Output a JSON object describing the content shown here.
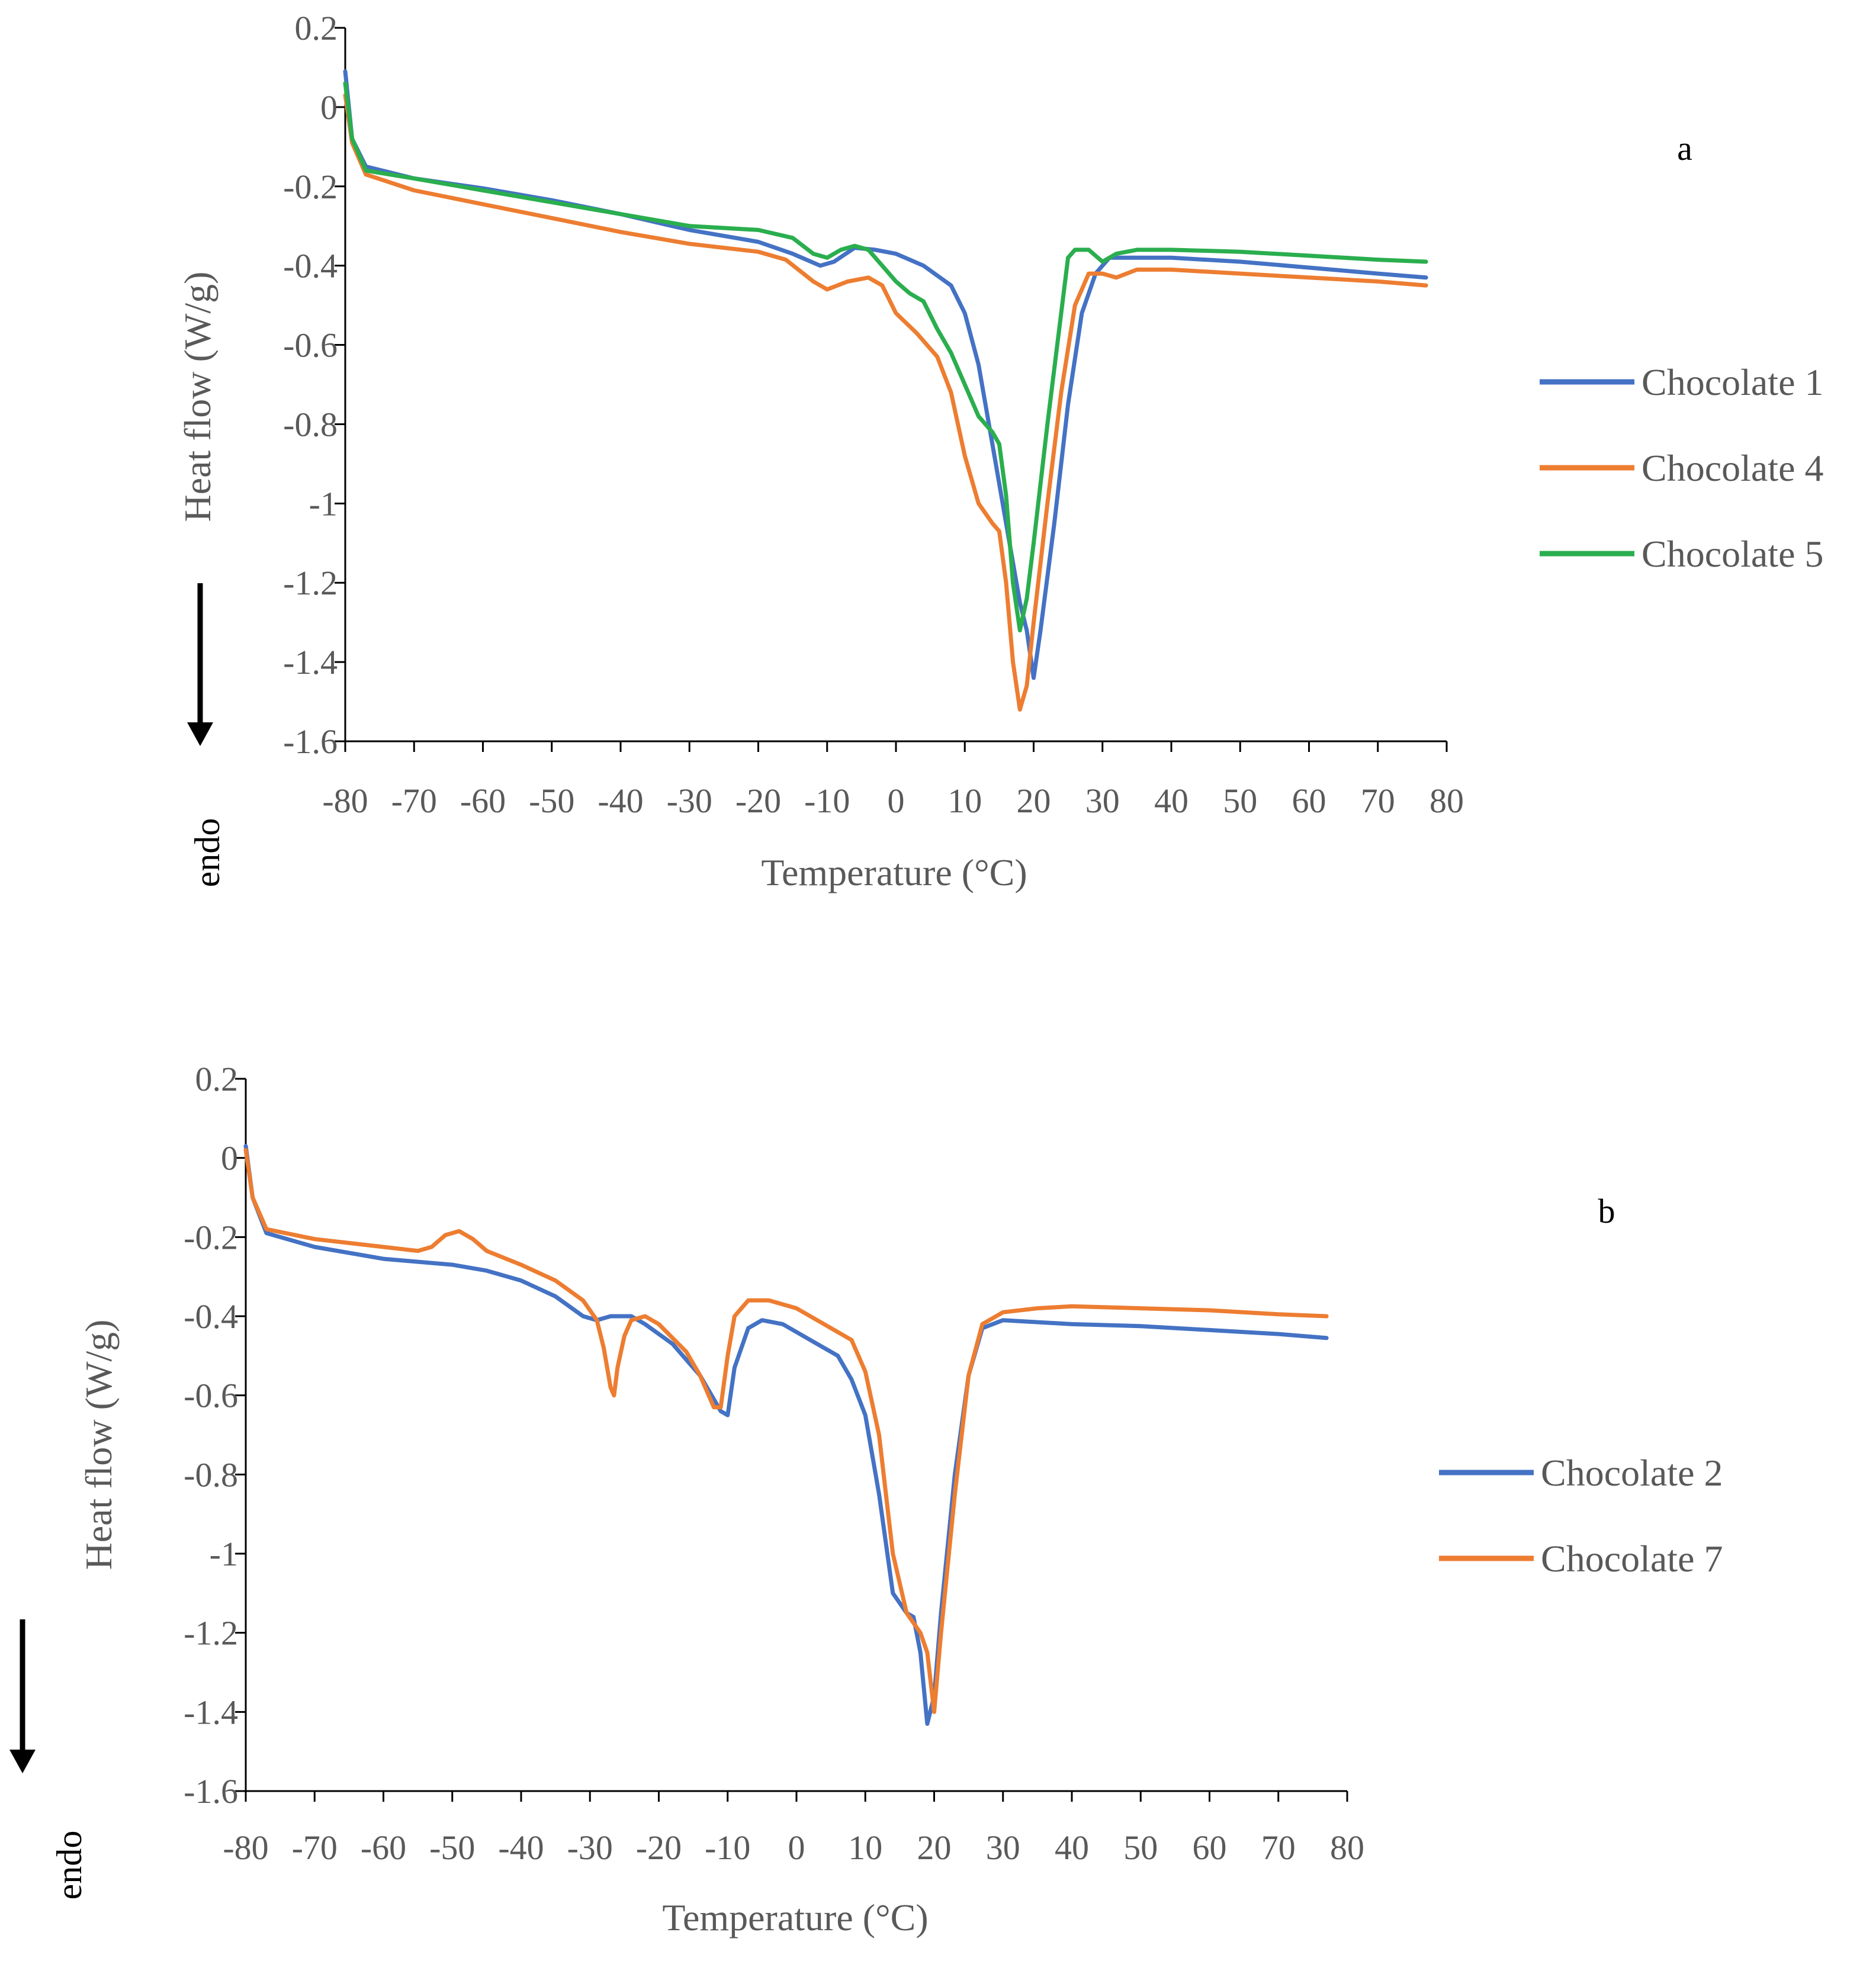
{
  "chart_data": [
    {
      "type": "line",
      "panel_label": "a",
      "xlabel": "Temperature (°C)",
      "ylabel": "Heat flow (W/g)",
      "direction_label": "endo",
      "xlim": [
        -80,
        80
      ],
      "ylim": [
        -1.6,
        0.2
      ],
      "x_ticks": [
        "-80",
        "-70",
        "-60",
        "-50",
        "-40",
        "-30",
        "-20",
        "-10",
        "0",
        "10",
        "20",
        "30",
        "40",
        "50",
        "60",
        "70",
        "80"
      ],
      "y_ticks": [
        "0.2",
        "0",
        "-0.2",
        "-0.4",
        "-0.6",
        "-0.8",
        "-1",
        "-1.2",
        "-1.4",
        "-1.6"
      ],
      "legend_position": "right",
      "series": [
        {
          "name": "Chocolate 1",
          "color": "#4472C4",
          "points": [
            [
              -80,
              0.09
            ],
            [
              -79,
              -0.08
            ],
            [
              -77,
              -0.15
            ],
            [
              -70,
              -0.18
            ],
            [
              -60,
              -0.205
            ],
            [
              -50,
              -0.235
            ],
            [
              -40,
              -0.27
            ],
            [
              -30,
              -0.31
            ],
            [
              -20,
              -0.34
            ],
            [
              -15,
              -0.37
            ],
            [
              -11,
              -0.4
            ],
            [
              -9,
              -0.39
            ],
            [
              -6,
              -0.355
            ],
            [
              -3,
              -0.36
            ],
            [
              0,
              -0.37
            ],
            [
              4,
              -0.4
            ],
            [
              8,
              -0.45
            ],
            [
              10,
              -0.52
            ],
            [
              12,
              -0.65
            ],
            [
              14,
              -0.85
            ],
            [
              16,
              -1.05
            ],
            [
              18,
              -1.25
            ],
            [
              19,
              -1.32
            ],
            [
              20,
              -1.44
            ],
            [
              21,
              -1.32
            ],
            [
              23,
              -1.05
            ],
            [
              25,
              -0.75
            ],
            [
              27,
              -0.52
            ],
            [
              29,
              -0.42
            ],
            [
              31,
              -0.38
            ],
            [
              40,
              -0.38
            ],
            [
              50,
              -0.39
            ],
            [
              60,
              -0.405
            ],
            [
              70,
              -0.42
            ],
            [
              77,
              -0.43
            ]
          ]
        },
        {
          "name": "Chocolate 4",
          "color": "#ED7D31",
          "points": [
            [
              -80,
              0.03
            ],
            [
              -79,
              -0.09
            ],
            [
              -77,
              -0.17
            ],
            [
              -70,
              -0.21
            ],
            [
              -60,
              -0.245
            ],
            [
              -50,
              -0.28
            ],
            [
              -40,
              -0.315
            ],
            [
              -30,
              -0.345
            ],
            [
              -20,
              -0.365
            ],
            [
              -16,
              -0.385
            ],
            [
              -12,
              -0.44
            ],
            [
              -10,
              -0.46
            ],
            [
              -7,
              -0.44
            ],
            [
              -4,
              -0.43
            ],
            [
              -2,
              -0.45
            ],
            [
              0,
              -0.52
            ],
            [
              3,
              -0.57
            ],
            [
              6,
              -0.63
            ],
            [
              8,
              -0.72
            ],
            [
              10,
              -0.88
            ],
            [
              12,
              -1.0
            ],
            [
              14,
              -1.05
            ],
            [
              15,
              -1.07
            ],
            [
              16,
              -1.2
            ],
            [
              17,
              -1.4
            ],
            [
              18,
              -1.52
            ],
            [
              19,
              -1.46
            ],
            [
              20,
              -1.3
            ],
            [
              22,
              -1.0
            ],
            [
              24,
              -0.72
            ],
            [
              26,
              -0.5
            ],
            [
              28,
              -0.42
            ],
            [
              30,
              -0.42
            ],
            [
              32,
              -0.43
            ],
            [
              35,
              -0.41
            ],
            [
              40,
              -0.41
            ],
            [
              50,
              -0.42
            ],
            [
              60,
              -0.43
            ],
            [
              70,
              -0.44
            ],
            [
              77,
              -0.45
            ]
          ]
        },
        {
          "name": "Chocolate 5",
          "color": "#2AAE4E",
          "points": [
            [
              -80,
              0.06
            ],
            [
              -79,
              -0.08
            ],
            [
              -77,
              -0.16
            ],
            [
              -70,
              -0.18
            ],
            [
              -60,
              -0.21
            ],
            [
              -50,
              -0.24
            ],
            [
              -40,
              -0.27
            ],
            [
              -30,
              -0.3
            ],
            [
              -20,
              -0.31
            ],
            [
              -15,
              -0.33
            ],
            [
              -12,
              -0.37
            ],
            [
              -10,
              -0.38
            ],
            [
              -8,
              -0.36
            ],
            [
              -6,
              -0.35
            ],
            [
              -4,
              -0.36
            ],
            [
              -2,
              -0.4
            ],
            [
              0,
              -0.44
            ],
            [
              2,
              -0.47
            ],
            [
              4,
              -0.49
            ],
            [
              6,
              -0.56
            ],
            [
              8,
              -0.62
            ],
            [
              10,
              -0.7
            ],
            [
              12,
              -0.78
            ],
            [
              14,
              -0.82
            ],
            [
              15,
              -0.85
            ],
            [
              16,
              -0.98
            ],
            [
              17,
              -1.2
            ],
            [
              18,
              -1.32
            ],
            [
              19,
              -1.24
            ],
            [
              20,
              -1.1
            ],
            [
              22,
              -0.8
            ],
            [
              24,
              -0.52
            ],
            [
              25,
              -0.38
            ],
            [
              26,
              -0.36
            ],
            [
              28,
              -0.36
            ],
            [
              30,
              -0.39
            ],
            [
              32,
              -0.37
            ],
            [
              35,
              -0.36
            ],
            [
              40,
              -0.36
            ],
            [
              50,
              -0.365
            ],
            [
              60,
              -0.375
            ],
            [
              70,
              -0.385
            ],
            [
              77,
              -0.39
            ]
          ]
        }
      ]
    },
    {
      "type": "line",
      "panel_label": "b",
      "xlabel": "Temperature (°C)",
      "ylabel": "Heat flow (W/g)",
      "direction_label": "endo",
      "xlim": [
        -80,
        80
      ],
      "ylim": [
        -1.6,
        0.2
      ],
      "x_ticks": [
        "-80",
        "-70",
        "-60",
        "-50",
        "-40",
        "-30",
        "-20",
        "-10",
        "0",
        "10",
        "20",
        "30",
        "40",
        "50",
        "60",
        "70",
        "80"
      ],
      "y_ticks": [
        "0.2",
        "0",
        "-0.2",
        "-0.4",
        "-0.6",
        "-0.8",
        "-1",
        "-1.2",
        "-1.4",
        "-1.6"
      ],
      "legend_position": "right",
      "series": [
        {
          "name": "Chocolate 2",
          "color": "#4472C4",
          "points": [
            [
              -80,
              0.03
            ],
            [
              -79,
              -0.1
            ],
            [
              -77,
              -0.19
            ],
            [
              -70,
              -0.225
            ],
            [
              -60,
              -0.255
            ],
            [
              -50,
              -0.27
            ],
            [
              -45,
              -0.285
            ],
            [
              -40,
              -0.31
            ],
            [
              -35,
              -0.35
            ],
            [
              -31,
              -0.4
            ],
            [
              -29,
              -0.41
            ],
            [
              -27,
              -0.4
            ],
            [
              -24,
              -0.4
            ],
            [
              -22,
              -0.42
            ],
            [
              -18,
              -0.47
            ],
            [
              -14,
              -0.55
            ],
            [
              -12,
              -0.61
            ],
            [
              -11,
              -0.64
            ],
            [
              -10,
              -0.65
            ],
            [
              -9,
              -0.53
            ],
            [
              -7,
              -0.43
            ],
            [
              -5,
              -0.41
            ],
            [
              -2,
              -0.42
            ],
            [
              2,
              -0.46
            ],
            [
              6,
              -0.5
            ],
            [
              8,
              -0.56
            ],
            [
              10,
              -0.65
            ],
            [
              12,
              -0.85
            ],
            [
              14,
              -1.1
            ],
            [
              16,
              -1.15
            ],
            [
              17,
              -1.16
            ],
            [
              18,
              -1.25
            ],
            [
              19,
              -1.43
            ],
            [
              20,
              -1.36
            ],
            [
              21,
              -1.15
            ],
            [
              23,
              -0.8
            ],
            [
              25,
              -0.55
            ],
            [
              27,
              -0.43
            ],
            [
              30,
              -0.41
            ],
            [
              40,
              -0.42
            ],
            [
              50,
              -0.425
            ],
            [
              60,
              -0.435
            ],
            [
              70,
              -0.445
            ],
            [
              77,
              -0.455
            ]
          ]
        },
        {
          "name": "Chocolate 7",
          "color": "#ED7D31",
          "points": [
            [
              -80,
              0.02
            ],
            [
              -79,
              -0.1
            ],
            [
              -77,
              -0.18
            ],
            [
              -70,
              -0.205
            ],
            [
              -60,
              -0.225
            ],
            [
              -55,
              -0.235
            ],
            [
              -53,
              -0.225
            ],
            [
              -51,
              -0.195
            ],
            [
              -49,
              -0.185
            ],
            [
              -47,
              -0.205
            ],
            [
              -45,
              -0.235
            ],
            [
              -40,
              -0.27
            ],
            [
              -35,
              -0.31
            ],
            [
              -31,
              -0.36
            ],
            [
              -29,
              -0.41
            ],
            [
              -28,
              -0.48
            ],
            [
              -27,
              -0.58
            ],
            [
              -26.5,
              -0.6
            ],
            [
              -26,
              -0.53
            ],
            [
              -25,
              -0.45
            ],
            [
              -24,
              -0.41
            ],
            [
              -22,
              -0.4
            ],
            [
              -20,
              -0.42
            ],
            [
              -16,
              -0.49
            ],
            [
              -14,
              -0.55
            ],
            [
              -12,
              -0.63
            ],
            [
              -11,
              -0.63
            ],
            [
              -10,
              -0.5
            ],
            [
              -9,
              -0.4
            ],
            [
              -7,
              -0.36
            ],
            [
              -4,
              -0.36
            ],
            [
              0,
              -0.38
            ],
            [
              4,
              -0.42
            ],
            [
              8,
              -0.46
            ],
            [
              10,
              -0.54
            ],
            [
              12,
              -0.7
            ],
            [
              13,
              -0.85
            ],
            [
              14,
              -1.0
            ],
            [
              16,
              -1.15
            ],
            [
              18,
              -1.2
            ],
            [
              19,
              -1.25
            ],
            [
              20,
              -1.4
            ],
            [
              21,
              -1.2
            ],
            [
              23,
              -0.85
            ],
            [
              25,
              -0.55
            ],
            [
              27,
              -0.42
            ],
            [
              30,
              -0.39
            ],
            [
              35,
              -0.38
            ],
            [
              40,
              -0.375
            ],
            [
              50,
              -0.38
            ],
            [
              60,
              -0.385
            ],
            [
              70,
              -0.395
            ],
            [
              77,
              -0.4
            ]
          ]
        }
      ]
    }
  ]
}
